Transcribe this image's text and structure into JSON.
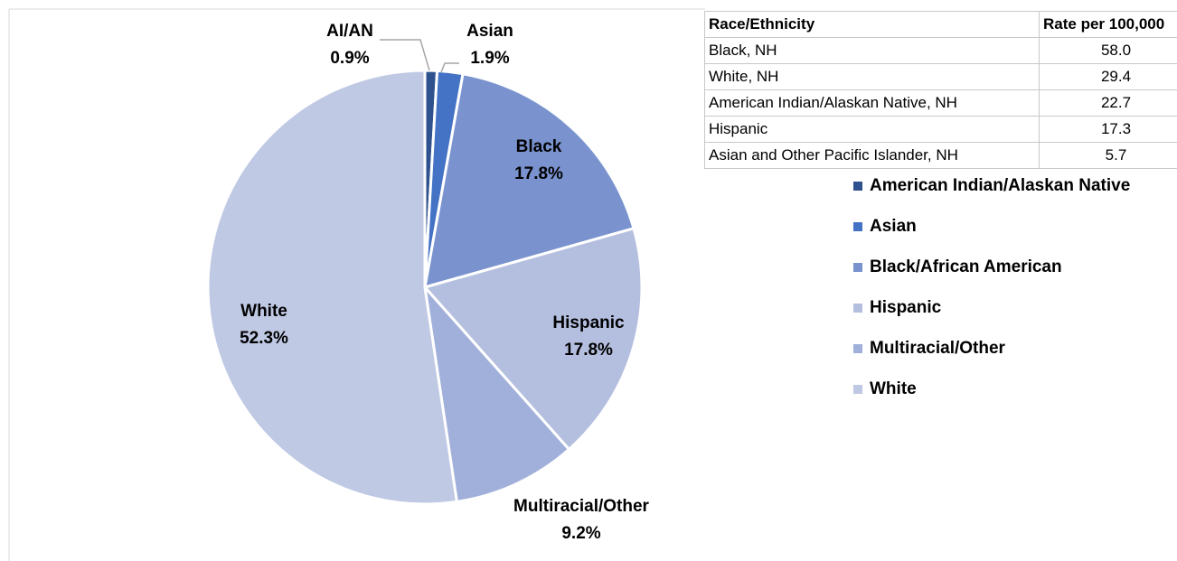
{
  "chart_data": {
    "type": "pie",
    "categories": [
      "American Indian/Alaskan Native",
      "Asian",
      "Black/African American",
      "Hispanic",
      "Multiracial/Other",
      "White"
    ],
    "labels": [
      "AI/AN",
      "Asian",
      "Black",
      "Hispanic",
      "Multiracial/Other",
      "White"
    ],
    "values": [
      0.9,
      1.9,
      17.8,
      17.8,
      9.2,
      52.3
    ],
    "value_labels": [
      "0.9%",
      "1.9%",
      "17.8%",
      "17.8%",
      "9.2%",
      "52.3%"
    ],
    "colors": [
      "#2f528f",
      "#4472c4",
      "#7a93cf",
      "#b4bfdf",
      "#a1b0da",
      "#c0c9e4"
    ],
    "legend": "right"
  },
  "table": {
    "header": [
      "Race/Ethnicity",
      "Rate per 100,000"
    ],
    "rows": [
      [
        "Black, NH",
        "58.0"
      ],
      [
        "White, NH",
        "29.4"
      ],
      [
        "American Indian/Alaskan Native, NH",
        "22.7"
      ],
      [
        "Hispanic",
        "17.3"
      ],
      [
        "Asian and Other Pacific Islander, NH",
        "5.7"
      ]
    ]
  }
}
